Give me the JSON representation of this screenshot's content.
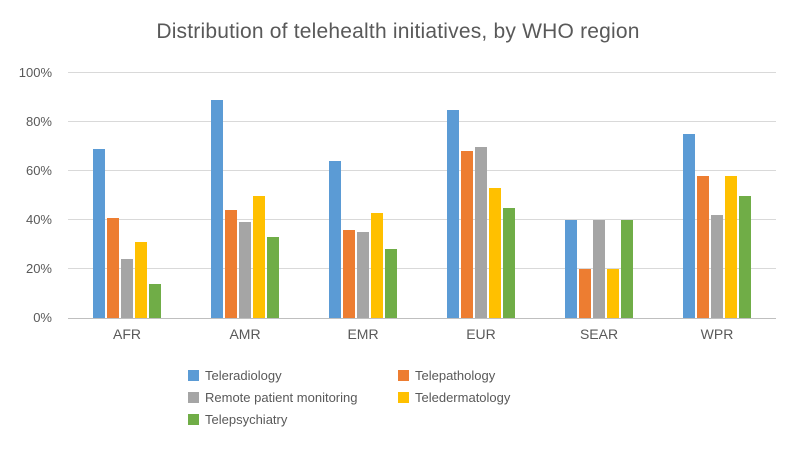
{
  "chart_data": {
    "type": "bar",
    "title": "Distribution of telehealth initiatives, by WHO region",
    "categories": [
      "AFR",
      "AMR",
      "EMR",
      "EUR",
      "SEAR",
      "WPR"
    ],
    "series": [
      {
        "name": "Teleradiology",
        "color": "#5B9BD5",
        "values": [
          69,
          89,
          64,
          85,
          40,
          75
        ]
      },
      {
        "name": "Telepathology",
        "color": "#ED7D31",
        "values": [
          41,
          44,
          36,
          68,
          20,
          58
        ]
      },
      {
        "name": "Remote patient monitoring",
        "color": "#A5A5A5",
        "values": [
          24,
          39,
          35,
          70,
          40,
          42
        ]
      },
      {
        "name": "Teledermatology",
        "color": "#FFC000",
        "values": [
          31,
          50,
          43,
          53,
          20,
          58
        ]
      },
      {
        "name": "Telepsychiatry",
        "color": "#70AD47",
        "values": [
          14,
          33,
          28,
          45,
          40,
          50
        ]
      }
    ],
    "ylim": [
      0,
      100
    ],
    "yticks": [
      0,
      20,
      40,
      60,
      80,
      100
    ],
    "ytick_labels": [
      "0%",
      "20%",
      "40%",
      "60%",
      "80%",
      "100%"
    ],
    "grid": true,
    "legend_position": "bottom",
    "text_color": "#595959",
    "gridline_color": "#D9D9D9"
  }
}
